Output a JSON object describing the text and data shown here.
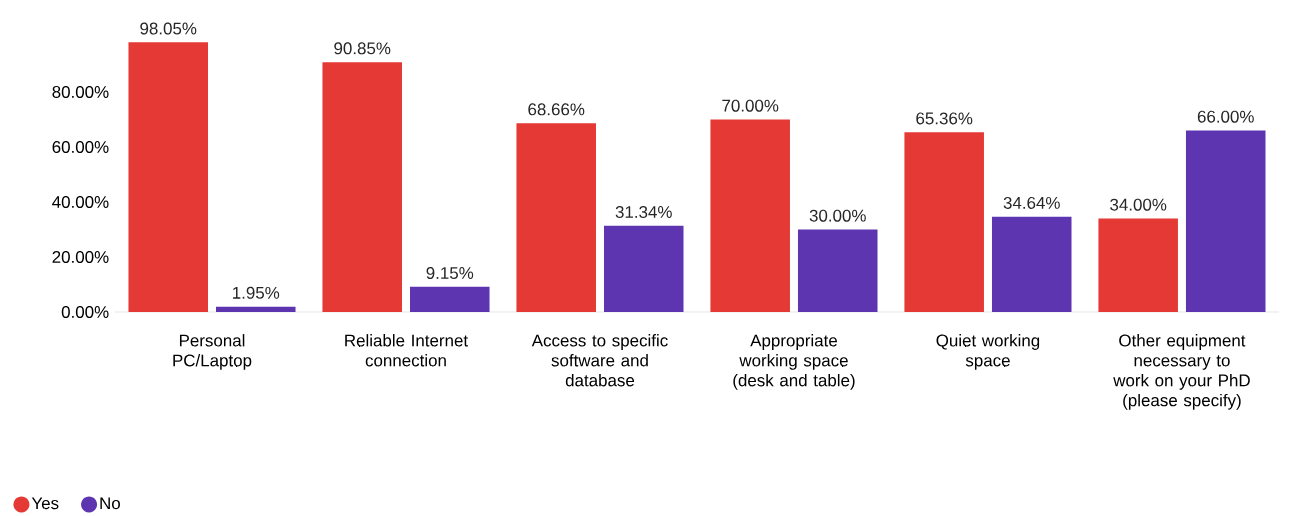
{
  "chart_data": {
    "type": "bar",
    "categories": [
      "Personal PC/Laptop",
      "Reliable Internet connection",
      "Access to specific software and database",
      "Appropriate working space (desk and table)",
      "Quiet working space",
      "Other equipment necessary to work on your PhD (please specify)"
    ],
    "series": [
      {
        "name": "Yes",
        "color": "#e53935",
        "values": [
          98.05,
          90.85,
          68.66,
          70.0,
          65.36,
          34.0
        ],
        "value_labels": [
          "98.05%",
          "90.85%",
          "68.66%",
          "70.00%",
          "65.36%",
          "34.00%"
        ]
      },
      {
        "name": "No",
        "color": "#5e35b1",
        "values": [
          1.95,
          9.15,
          31.34,
          30.0,
          34.64,
          66.0
        ],
        "value_labels": [
          "1.95%",
          "9.15%",
          "31.34%",
          "30.00%",
          "34.64%",
          "66.00%"
        ]
      }
    ],
    "ylim": [
      0,
      100
    ],
    "yticks": [
      {
        "value": 0,
        "label": "0.00%"
      },
      {
        "value": 20,
        "label": "20.00%"
      },
      {
        "value": 40,
        "label": "40.00%"
      },
      {
        "value": 60,
        "label": "60.00%"
      },
      {
        "value": 80,
        "label": "80.00%"
      }
    ],
    "legend": "bottom left",
    "marker": "circle"
  }
}
